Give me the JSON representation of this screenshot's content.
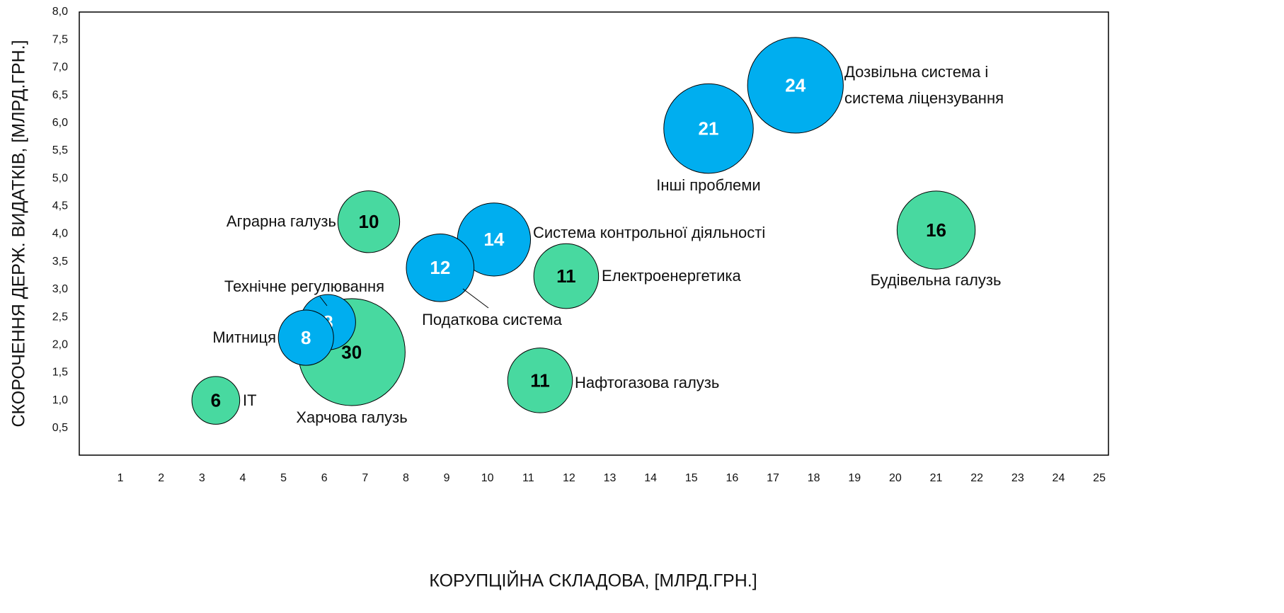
{
  "chart_data": {
    "type": "bubble",
    "x_label": "КОРУПЦІЙНА СКЛАДОВА, [МЛРД.ГРН.]",
    "y_label": "СКОРОЧЕННЯ ДЕРЖ. ВИДАТКІВ, [МЛРД.ГРН.]",
    "xlim": [
      0,
      25.2
    ],
    "ylim": [
      0,
      8
    ],
    "xticks": [
      1,
      2,
      3,
      4,
      5,
      6,
      7,
      8,
      9,
      10,
      11,
      12,
      13,
      14,
      15,
      16,
      17,
      18,
      19,
      20,
      21,
      22,
      23,
      24,
      25
    ],
    "yticks": [
      {
        "value": 0.5,
        "label": "0,5"
      },
      {
        "value": 1,
        "label": "1,0"
      },
      {
        "value": 1.5,
        "label": "1,5"
      },
      {
        "value": 2,
        "label": "2,0"
      },
      {
        "value": 2.5,
        "label": "2,5"
      },
      {
        "value": 3,
        "label": "3,0"
      },
      {
        "value": 3.5,
        "label": "3,5"
      },
      {
        "value": 4,
        "label": "4,0"
      },
      {
        "value": 4.5,
        "label": "4,5"
      },
      {
        "value": 5,
        "label": "5,0"
      },
      {
        "value": 5.5,
        "label": "5,5"
      },
      {
        "value": 6,
        "label": "6,0"
      },
      {
        "value": 6.5,
        "label": "6,5"
      },
      {
        "value": 7,
        "label": "7,0"
      },
      {
        "value": 7.5,
        "label": "7,5"
      },
      {
        "value": 8,
        "label": "8,0"
      }
    ],
    "points": [
      {
        "label": "IT",
        "x": 3.34,
        "y": 1.0,
        "size": 6,
        "color": "#48d9a0"
      },
      {
        "label": "Харчова галузь",
        "x": 6.67,
        "y": 1.87,
        "size": 30,
        "color": "#48d9a0"
      },
      {
        "label": "Технічне регулювання",
        "x": 6.09,
        "y": 2.41,
        "size": 8,
        "color": "#00aeef"
      },
      {
        "label": "Митниця",
        "x": 5.55,
        "y": 2.13,
        "size": 8,
        "color": "#00aeef"
      },
      {
        "label": "Аграрна галузь",
        "x": 7.09,
        "y": 4.22,
        "size": 10,
        "color": "#48d9a0"
      },
      {
        "label": "Система контрольної діяльності",
        "x": 10.16,
        "y": 3.9,
        "size": 14,
        "color": "#00aeef"
      },
      {
        "label": "Податкова система",
        "x": 8.84,
        "y": 3.39,
        "size": 12,
        "color": "#00aeef"
      },
      {
        "label": "Електроенергетика",
        "x": 11.93,
        "y": 3.24,
        "size": 11,
        "color": "#48d9a0"
      },
      {
        "label": "Нафтогазова галузь",
        "x": 11.29,
        "y": 1.36,
        "size": 11,
        "color": "#48d9a0"
      },
      {
        "label": "Інші проблеми",
        "x": 15.42,
        "y": 5.9,
        "size": 21,
        "color": "#00aeef"
      },
      {
        "label": [
          "Дозвільна система і",
          "система ліцензування"
        ],
        "x": 17.55,
        "y": 6.68,
        "size": 24,
        "color": "#00aeef"
      },
      {
        "label": "Будівельна галузь",
        "x": 21.0,
        "y": 4.07,
        "size": 16,
        "color": "#48d9a0"
      }
    ]
  }
}
